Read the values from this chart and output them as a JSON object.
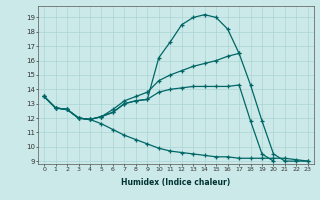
{
  "xlabel": "Humidex (Indice chaleur)",
  "background_color": "#cce9e9",
  "grid_color": "#aad4d4",
  "line_color": "#006666",
  "xlim": [
    -0.5,
    23.5
  ],
  "ylim": [
    8.8,
    19.8
  ],
  "yticks": [
    9,
    10,
    11,
    12,
    13,
    14,
    15,
    16,
    17,
    18,
    19
  ],
  "xticks": [
    0,
    1,
    2,
    3,
    4,
    5,
    6,
    7,
    8,
    9,
    10,
    11,
    12,
    13,
    14,
    15,
    16,
    17,
    18,
    19,
    20,
    21,
    22,
    23
  ],
  "series": [
    {
      "x": [
        0,
        1,
        2,
        3,
        4,
        5,
        6,
        7,
        8,
        9,
        10,
        11,
        12,
        13,
        14,
        15,
        16,
        17
      ],
      "y": [
        13.5,
        12.7,
        12.6,
        12.0,
        11.9,
        12.1,
        12.4,
        13.0,
        13.2,
        13.3,
        16.2,
        17.3,
        18.5,
        19.0,
        19.2,
        19.0,
        18.2,
        16.5
      ]
    },
    {
      "x": [
        0,
        1,
        2,
        3,
        4,
        5,
        6,
        7,
        8,
        9,
        10,
        11,
        12,
        13,
        14,
        15,
        16,
        17,
        18,
        19,
        20,
        21,
        22,
        23
      ],
      "y": [
        13.5,
        12.7,
        12.6,
        12.0,
        11.9,
        12.1,
        12.6,
        13.2,
        13.5,
        13.8,
        14.6,
        15.0,
        15.3,
        15.6,
        15.8,
        16.0,
        16.3,
        16.5,
        14.3,
        11.8,
        9.5,
        9.0,
        9.0,
        9.0
      ]
    },
    {
      "x": [
        0,
        1,
        2,
        3,
        4,
        5,
        6,
        7,
        8,
        9,
        10,
        11,
        12,
        13,
        14,
        15,
        16,
        17,
        18,
        19,
        20,
        21,
        22,
        23
      ],
      "y": [
        13.5,
        12.7,
        12.6,
        12.0,
        11.9,
        12.1,
        12.4,
        13.0,
        13.2,
        13.3,
        13.8,
        14.0,
        14.1,
        14.2,
        14.2,
        14.2,
        14.2,
        14.3,
        11.8,
        9.5,
        9.0,
        null,
        null,
        null
      ]
    },
    {
      "x": [
        0,
        1,
        2,
        3,
        4,
        5,
        6,
        7,
        8,
        9,
        10,
        11,
        12,
        13,
        14,
        15,
        16,
        17,
        18,
        19,
        20,
        21,
        22,
        23
      ],
      "y": [
        13.5,
        12.7,
        12.6,
        12.0,
        11.9,
        11.6,
        11.2,
        10.8,
        10.5,
        10.2,
        9.9,
        9.7,
        9.6,
        9.5,
        9.4,
        9.3,
        9.3,
        9.2,
        9.2,
        9.2,
        9.2,
        9.2,
        9.1,
        9.0
      ]
    }
  ]
}
